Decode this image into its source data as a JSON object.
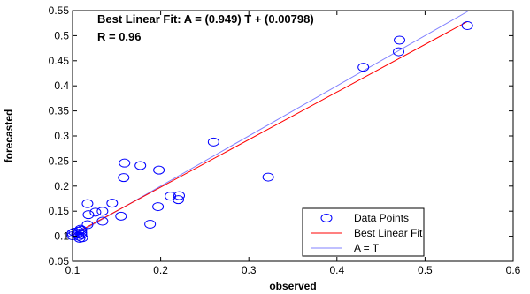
{
  "chart_data": {
    "type": "scatter",
    "xlabel": "observed",
    "ylabel": "forecasted",
    "xlim": [
      0.1,
      0.6
    ],
    "ylim": [
      0.05,
      0.55
    ],
    "x_ticks": [
      "0.1",
      "0.2",
      "0.3",
      "0.4",
      "0.5",
      "0.6"
    ],
    "y_ticks": [
      "0.05",
      "0.1",
      "0.15",
      "0.2",
      "0.25",
      "0.3",
      "0.35",
      "0.4",
      "0.45",
      "0.5",
      "0.55"
    ],
    "grid": false,
    "legend_position": "bottom-right",
    "annotations": {
      "fit": "Best Linear Fit:  A = (0.949) T + (0.00798)",
      "r": "R = 0.96"
    },
    "fit": {
      "slope": 0.949,
      "intercept": 0.00798,
      "color": "#ff0000"
    },
    "identity": {
      "color": "#8080ff"
    },
    "point_color": "#0000ff",
    "series": [
      {
        "name": "Data Points",
        "points": [
          [
            0.1,
            0.101
          ],
          [
            0.1,
            0.106
          ],
          [
            0.102,
            0.108
          ],
          [
            0.105,
            0.104
          ],
          [
            0.107,
            0.11
          ],
          [
            0.107,
            0.1
          ],
          [
            0.108,
            0.096
          ],
          [
            0.109,
            0.114
          ],
          [
            0.11,
            0.112
          ],
          [
            0.11,
            0.107
          ],
          [
            0.11,
            0.103
          ],
          [
            0.111,
            0.097
          ],
          [
            0.117,
            0.123
          ],
          [
            0.117,
            0.165
          ],
          [
            0.118,
            0.143
          ],
          [
            0.126,
            0.148
          ],
          [
            0.134,
            0.15
          ],
          [
            0.134,
            0.13
          ],
          [
            0.145,
            0.166
          ],
          [
            0.155,
            0.14
          ],
          [
            0.158,
            0.217
          ],
          [
            0.159,
            0.246
          ],
          [
            0.177,
            0.241
          ],
          [
            0.188,
            0.124
          ],
          [
            0.197,
            0.159
          ],
          [
            0.198,
            0.232
          ],
          [
            0.211,
            0.18
          ],
          [
            0.22,
            0.173
          ],
          [
            0.221,
            0.181
          ],
          [
            0.26,
            0.288
          ],
          [
            0.322,
            0.218
          ],
          [
            0.43,
            0.437
          ],
          [
            0.47,
            0.468
          ],
          [
            0.471,
            0.491
          ],
          [
            0.548,
            0.52
          ]
        ]
      },
      {
        "name": "Best Linear Fit"
      },
      {
        "name": "A = T"
      }
    ]
  }
}
